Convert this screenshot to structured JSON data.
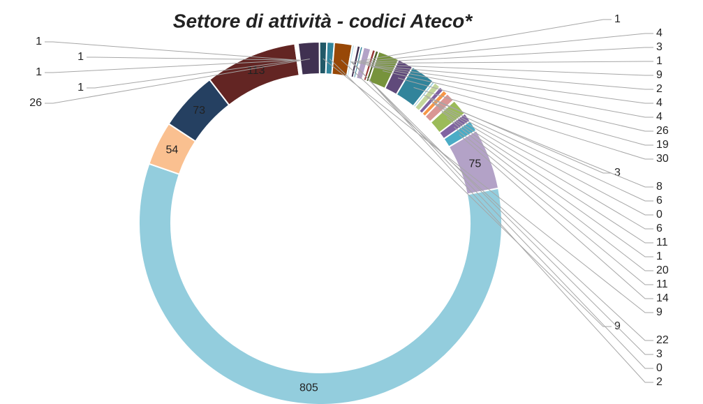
{
  "chart_data": {
    "type": "donut",
    "title": "Settore di attività - codici Ateco*",
    "values": [
      1,
      4,
      3,
      1,
      9,
      2,
      4,
      4,
      26,
      19,
      30,
      3,
      8,
      6,
      0,
      6,
      11,
      1,
      20,
      11,
      14,
      75,
      805,
      54,
      73,
      113,
      1,
      1,
      1,
      1,
      26,
      9,
      9,
      22,
      3,
      0,
      2
    ],
    "colors": [
      "#b3a2c7",
      "#403151",
      "#31849b",
      "#e46c0a",
      "#b3a2c7",
      "#fac090",
      "#953735",
      "#4f6228",
      "#77933c",
      "#604a7b",
      "#31849b",
      "#93cddd",
      "#c3d69b",
      "#8064a2",
      "#4bacc6",
      "#f79646",
      "#d99694",
      "#c0504d",
      "#9bbb59",
      "#8064a2",
      "#4bacc6",
      "#b3a2c7",
      "#93cddd",
      "#fac090",
      "#254061",
      "#632523",
      "#4f6228",
      "#403151",
      "#215968",
      "#984807",
      "#403151",
      "#215968",
      "#31859c",
      "#984807",
      "#b7dee8",
      "#fcd5b5",
      "#ccc1da"
    ]
  }
}
